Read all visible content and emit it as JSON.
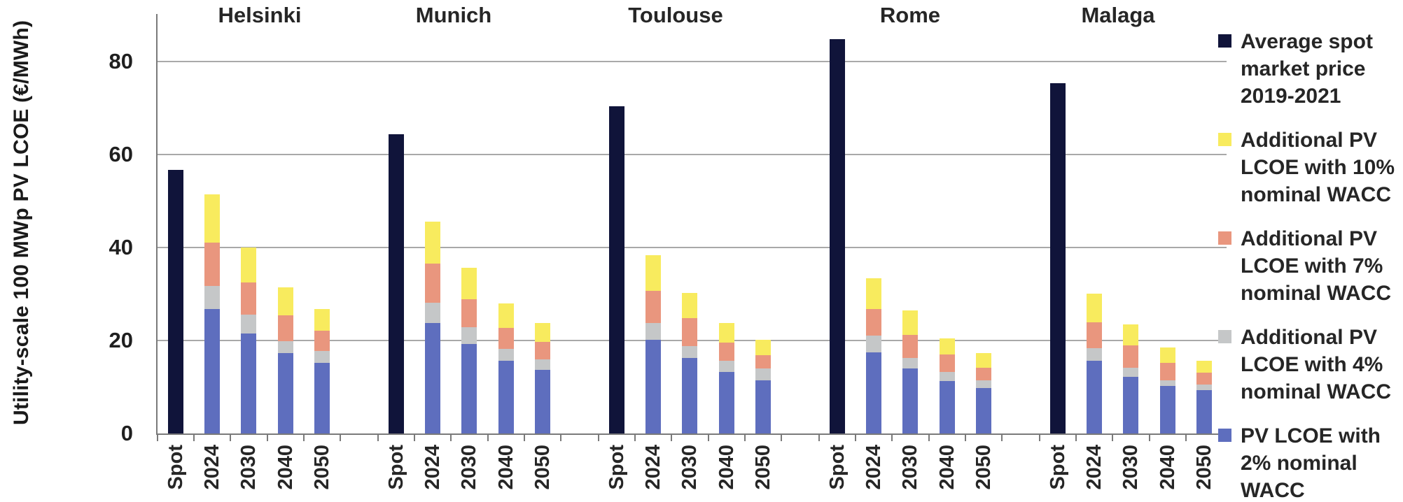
{
  "chart_data": {
    "type": "bar",
    "stacked": true,
    "title": "",
    "xlabel": "",
    "ylabel": "Utility-scale 100 MWp PV LCOE (€/MWh)",
    "yticks": [
      0,
      20,
      40,
      60,
      80
    ],
    "ylim": [
      0,
      90
    ],
    "grid": "horizontal",
    "legend_position": "right",
    "bar_labels": [
      "Spot",
      "2024",
      "2030",
      "2040",
      "2050"
    ],
    "legend": [
      {
        "label": "Average spot market price 2019-2021",
        "color": "#10143A"
      },
      {
        "label": "Additional PV LCOE with 10% nominal WACC",
        "color": "#F8EB5E"
      },
      {
        "label": "Additional PV LCOE with 7% nominal WACC",
        "color": "#E9967E"
      },
      {
        "label": "Additional PV LCOE with 4% nominal WACC",
        "color": "#C5C7C8"
      },
      {
        "label": "PV LCOE with 2% nominal WACC",
        "color": "#5E6EBE"
      }
    ],
    "stack_order_note": "stacks arrays are segment heights bottom-to-top: [2% WACC, +4% WACC, +7% WACC, +10% WACC] in EUR/MWh",
    "stack_legend_indices_bottom_to_top": [
      4,
      3,
      2,
      1
    ],
    "groups": [
      {
        "city": "Helsinki",
        "spot": 56.7,
        "stacks": [
          [
            26.7,
            5.1,
            9.3,
            10.3
          ],
          [
            21.5,
            4.0,
            7.0,
            7.5
          ],
          [
            17.3,
            2.5,
            5.6,
            6.0
          ],
          [
            15.2,
            2.6,
            4.3,
            4.7
          ]
        ]
      },
      {
        "city": "Munich",
        "spot": 64.3,
        "stacks": [
          [
            23.7,
            4.4,
            8.4,
            9.1
          ],
          [
            19.2,
            3.7,
            6.0,
            6.8
          ],
          [
            15.6,
            2.6,
            4.5,
            5.3
          ],
          [
            13.7,
            2.2,
            3.8,
            4.1
          ]
        ]
      },
      {
        "city": "Toulouse",
        "spot": 70.4,
        "stacks": [
          [
            20.2,
            3.5,
            7.0,
            7.7
          ],
          [
            16.2,
            2.6,
            6.0,
            5.4
          ],
          [
            13.3,
            2.4,
            3.8,
            4.2
          ],
          [
            11.5,
            2.5,
            2.9,
            3.2
          ]
        ]
      },
      {
        "city": "Rome",
        "spot": 84.8,
        "stacks": [
          [
            17.4,
            3.6,
            5.8,
            6.6
          ],
          [
            14.0,
            2.2,
            5.0,
            5.2
          ],
          [
            11.3,
            1.9,
            3.8,
            3.4
          ],
          [
            9.8,
            1.7,
            2.7,
            3.1
          ]
        ]
      },
      {
        "city": "Malaga",
        "spot": 75.3,
        "stacks": [
          [
            15.6,
            2.7,
            5.6,
            6.2
          ],
          [
            12.2,
            2.0,
            4.8,
            4.5
          ],
          [
            10.2,
            1.2,
            3.8,
            3.3
          ],
          [
            9.3,
            1.2,
            2.6,
            2.5
          ]
        ]
      }
    ],
    "colors": {
      "gridline": "#a9a9a9",
      "axis": "#7a7a7a",
      "text": "#262626"
    }
  }
}
